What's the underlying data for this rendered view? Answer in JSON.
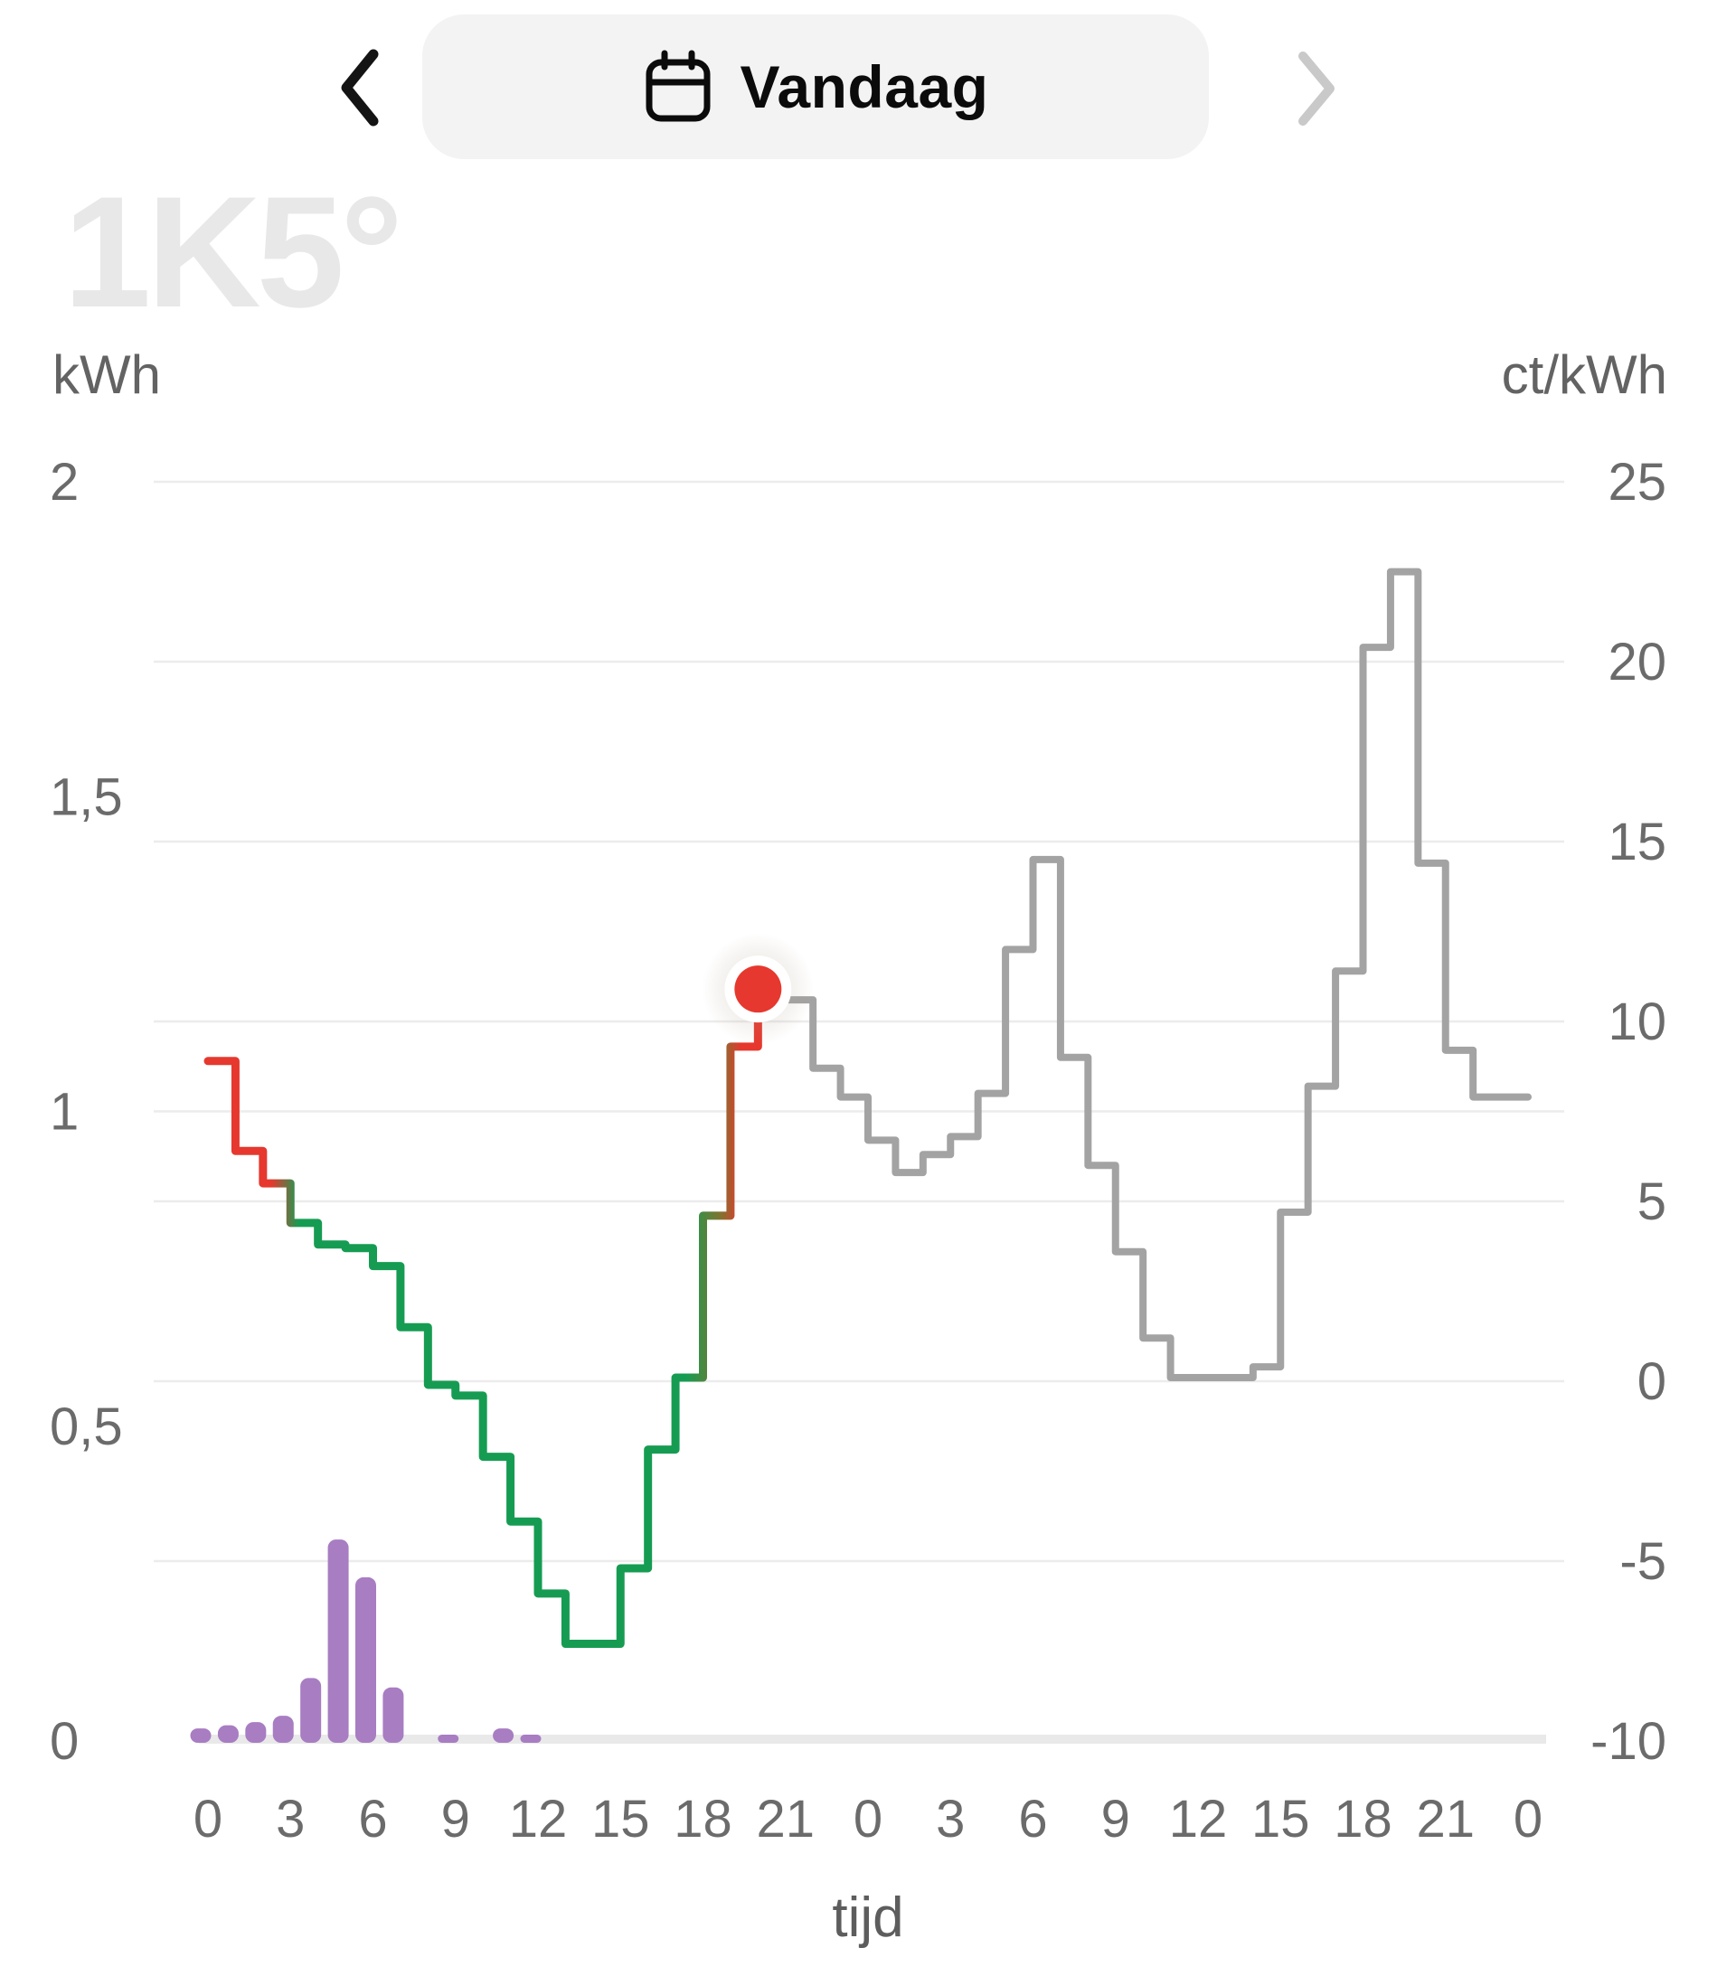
{
  "header": {
    "title": "Vandaag"
  },
  "watermark": "1K5°",
  "chart_data": {
    "type": "line",
    "title": "Energy price (step line, 48h) with hourly usage bars",
    "grid": true,
    "legend_position": "none",
    "left_axis": {
      "label": "kWh",
      "tick_labels": [
        "2",
        "1,5",
        "1",
        "0,5",
        "0"
      ],
      "tick_values": [
        2,
        1.5,
        1,
        0.5,
        0
      ],
      "range": [
        0,
        2
      ]
    },
    "right_axis": {
      "label": "ct/kWh",
      "tick_labels": [
        "25",
        "20",
        "15",
        "10",
        "5",
        "0",
        "-5",
        "-10"
      ],
      "tick_values": [
        25,
        20,
        15,
        10,
        5,
        0,
        -5,
        -10
      ],
      "range": [
        -10,
        25
      ]
    },
    "x_axis": {
      "label": "tijd",
      "tick_labels": [
        "0",
        "3",
        "6",
        "9",
        "12",
        "15",
        "18",
        "21",
        "0",
        "3",
        "6",
        "9",
        "12",
        "15",
        "18",
        "21",
        "0"
      ],
      "tick_hours": [
        0,
        3,
        6,
        9,
        12,
        15,
        18,
        21,
        24,
        27,
        30,
        33,
        36,
        39,
        42,
        45,
        48
      ],
      "hours_total": 48
    },
    "price_ct_per_kwh": {
      "unit": "ct/kWh",
      "day1": [
        8.9,
        6.4,
        5.5,
        4.4,
        3.8,
        3.7,
        3.2,
        1.5,
        -0.1,
        -0.4,
        -2.1,
        -3.9,
        -5.9,
        -7.3,
        -7.3,
        -5.2,
        -1.9,
        0.1,
        4.6,
        9.3,
        10.9,
        10.6,
        8.7,
        7.9
      ],
      "day2": [
        6.7,
        5.8,
        6.3,
        6.8,
        8.0,
        12.0,
        14.5,
        9.0,
        6.0,
        3.6,
        1.2,
        0.1,
        0.1,
        0.1,
        0.4,
        4.7,
        8.2,
        11.4,
        20.4,
        22.5,
        14.4,
        9.2,
        7.9,
        7.9
      ],
      "now_hour_index": 20,
      "now_value": 10.9
    },
    "usage_kwh": {
      "unit": "kWh",
      "hours": [
        0,
        1,
        2,
        3,
        4,
        5,
        6,
        7,
        9,
        11,
        12
      ],
      "values": [
        0.02,
        0.025,
        0.03,
        0.04,
        0.1,
        0.32,
        0.26,
        0.085,
        0.01,
        0.02,
        0.01
      ]
    },
    "colors": {
      "price_past_cheap": "#169c52",
      "price_past_expensive": "#e6382e",
      "price_transition": "#7c7530",
      "price_forecast": "#a3a3a3",
      "usage_bar": "#a87dc2",
      "gridline": "#ececec",
      "baseline": "#e9e9e9",
      "axis_text": "#6b6b6b",
      "now_dot": "#e6382e",
      "header_pill_bg": "#f3f3f4",
      "disabled_chevron": "#c9c9c9"
    }
  }
}
